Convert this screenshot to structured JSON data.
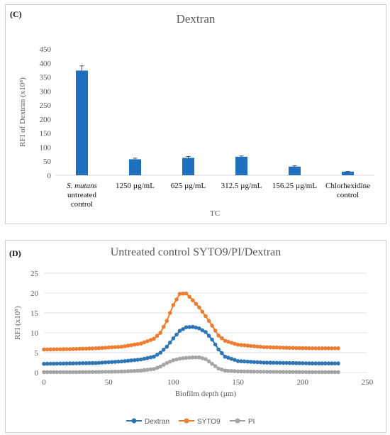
{
  "panelC": {
    "letter": "(C)",
    "chart_data": {
      "type": "bar",
      "title": "Dextran",
      "xlabel": "TC",
      "ylabel": "RFI of Dextran (x10⁸)",
      "ylim": [
        0,
        450
      ],
      "yticks": [
        0,
        50,
        100,
        150,
        200,
        250,
        300,
        350,
        400,
        450
      ],
      "categories": [
        "S. mutans untreated control",
        "1250 µg/mL",
        "625 µg/mL",
        "312.5 µg/mL",
        "156.25 µg/mL",
        "Chlorhexidine control"
      ],
      "category_lines": [
        [
          "S. mutans",
          "untreated",
          "control"
        ],
        [
          "1250 µg/mL"
        ],
        [
          "625 µg/mL"
        ],
        [
          "312.5 µg/mL"
        ],
        [
          "156.25 µg/mL"
        ],
        [
          "Chlorhexidine",
          "control"
        ]
      ],
      "values": [
        373,
        57,
        62,
        66,
        31,
        13
      ],
      "errors": [
        17,
        4,
        5,
        3,
        3,
        1
      ],
      "bar_color": "#1f6fbf",
      "grid": false,
      "legend": "none"
    }
  },
  "panelD": {
    "letter": "(D)",
    "chart_data": {
      "type": "line",
      "title": "Untreated control SYTO9/PI/Dextran",
      "xlabel": "Biofilm depth (µm)",
      "ylabel": "RFI (x10⁸)",
      "xlim": [
        0,
        250
      ],
      "ylim": [
        0,
        25
      ],
      "xticks": [
        0,
        50,
        100,
        150,
        200,
        250
      ],
      "yticks": [
        0,
        5,
        10,
        15,
        20,
        25
      ],
      "legend": "bottom",
      "grid": "horizontal",
      "series": [
        {
          "name": "Dextran",
          "color": "#2e75b6",
          "x": [
            0,
            20,
            40,
            60,
            75,
            85,
            90,
            95,
            100,
            105,
            110,
            115,
            120,
            125,
            130,
            135,
            140,
            150,
            170,
            190,
            210,
            228
          ],
          "y": [
            2.2,
            2.3,
            2.4,
            2.8,
            3.3,
            4.0,
            5.0,
            6.5,
            8.6,
            10.5,
            11.4,
            11.5,
            11.1,
            10.2,
            8.3,
            5.8,
            4.0,
            2.9,
            2.5,
            2.4,
            2.3,
            2.3
          ]
        },
        {
          "name": "SYTO9",
          "color": "#ed7d31",
          "x": [
            0,
            20,
            40,
            60,
            75,
            85,
            90,
            95,
            100,
            105,
            110,
            115,
            120,
            125,
            130,
            135,
            140,
            150,
            170,
            190,
            210,
            228
          ],
          "y": [
            5.8,
            5.9,
            6.1,
            6.5,
            7.3,
            8.5,
            10.0,
            13.0,
            17.0,
            19.8,
            19.9,
            18.2,
            16.4,
            14.2,
            11.8,
            9.3,
            8.0,
            7.0,
            6.4,
            6.2,
            6.1,
            6.1
          ]
        },
        {
          "name": "PI",
          "color": "#a5a5a5",
          "x": [
            0,
            20,
            40,
            60,
            75,
            85,
            90,
            95,
            100,
            105,
            110,
            115,
            120,
            125,
            130,
            135,
            140,
            150,
            170,
            190,
            210,
            228
          ],
          "y": [
            0.1,
            0.1,
            0.15,
            0.25,
            0.5,
            0.9,
            1.5,
            2.4,
            3.1,
            3.5,
            3.7,
            3.8,
            3.8,
            3.4,
            2.2,
            1.0,
            0.5,
            0.3,
            0.2,
            0.15,
            0.1,
            0.1
          ]
        }
      ]
    }
  }
}
